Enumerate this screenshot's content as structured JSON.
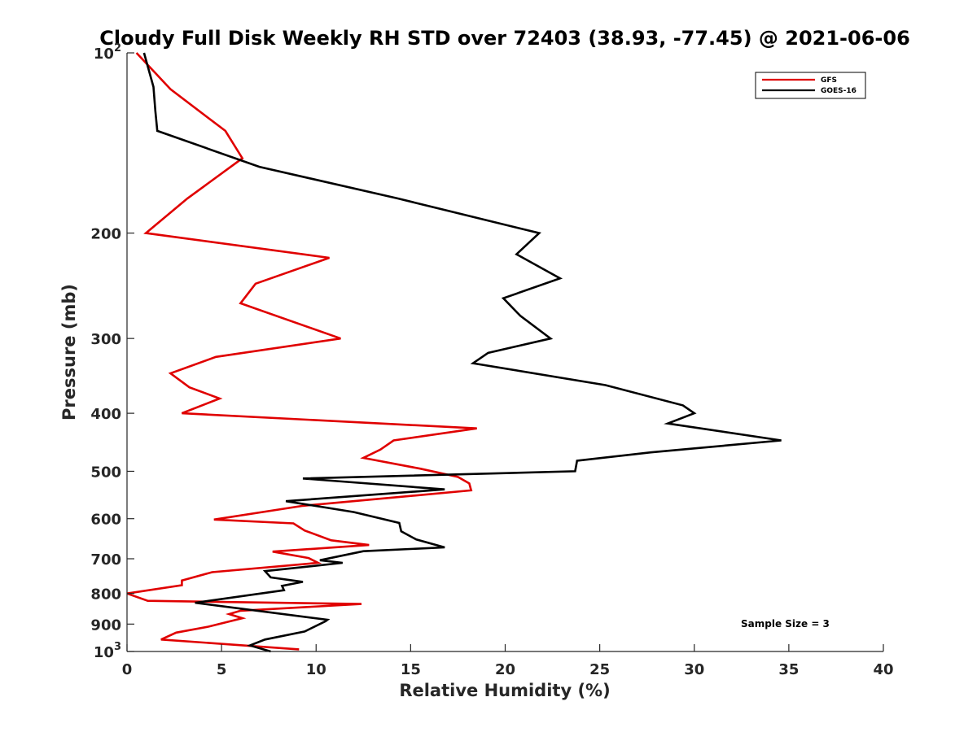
{
  "chart_data": {
    "type": "line",
    "title": "Cloudy Full Disk Weekly RH STD over 72403 (38.93, -77.45) @ 2021-06-06",
    "xlabel": "Relative Humidity (%)",
    "ylabel": "Pressure (mb)",
    "xlim": [
      0,
      40
    ],
    "ylim": [
      100,
      1000
    ],
    "y_scale": "log",
    "y_reversed": true,
    "grid": false,
    "legend_position": "top-right",
    "x_ticks": [
      "0",
      "5",
      "10",
      "15",
      "20",
      "25",
      "30",
      "35",
      "40"
    ],
    "y_ticks": [
      {
        "value": 100,
        "label": "10",
        "sup": "2"
      },
      {
        "value": 200,
        "label": "200",
        "sup": ""
      },
      {
        "value": 300,
        "label": "300",
        "sup": ""
      },
      {
        "value": 400,
        "label": "400",
        "sup": ""
      },
      {
        "value": 500,
        "label": "500",
        "sup": ""
      },
      {
        "value": 600,
        "label": "600",
        "sup": ""
      },
      {
        "value": 700,
        "label": "700",
        "sup": ""
      },
      {
        "value": 800,
        "label": "800",
        "sup": ""
      },
      {
        "value": 900,
        "label": "900",
        "sup": ""
      },
      {
        "value": 1000,
        "label": "10",
        "sup": "3"
      }
    ],
    "annotation": "Sample Size = 3",
    "series": [
      {
        "name": "GFS",
        "color": "#e00000",
        "points": [
          [
            0.5,
            100
          ],
          [
            2.3,
            115
          ],
          [
            5.2,
            135
          ],
          [
            6.1,
            150
          ],
          [
            3.2,
            175
          ],
          [
            1.0,
            200
          ],
          [
            10.7,
            220
          ],
          [
            6.8,
            243
          ],
          [
            6.0,
            262
          ],
          [
            11.3,
            300
          ],
          [
            4.7,
            322
          ],
          [
            2.3,
            343
          ],
          [
            3.3,
            362
          ],
          [
            4.9,
            378
          ],
          [
            2.9,
            400
          ],
          [
            18.5,
            424
          ],
          [
            14.1,
            444
          ],
          [
            13.4,
            460
          ],
          [
            12.5,
            475
          ],
          [
            15.5,
            495
          ],
          [
            17.5,
            511
          ],
          [
            18.1,
            524
          ],
          [
            18.2,
            538
          ],
          [
            9.3,
            571
          ],
          [
            4.6,
            602
          ],
          [
            8.8,
            611
          ],
          [
            9.4,
            628
          ],
          [
            10.8,
            652
          ],
          [
            12.8,
            664
          ],
          [
            7.7,
            681
          ],
          [
            9.6,
            698
          ],
          [
            10.1,
            711
          ],
          [
            4.5,
            737
          ],
          [
            2.9,
            761
          ],
          [
            2.9,
            775
          ],
          [
            0.0,
            800
          ],
          [
            1.1,
            823
          ],
          [
            12.4,
            833
          ],
          [
            6.0,
            855
          ],
          [
            5.4,
            866
          ],
          [
            6.1,
            880
          ],
          [
            4.3,
            909
          ],
          [
            2.6,
            930
          ],
          [
            1.8,
            955
          ],
          [
            9.1,
            992
          ]
        ]
      },
      {
        "name": "GOES-16",
        "color": "#000000",
        "points": [
          [
            0.9,
            100
          ],
          [
            1.4,
            114
          ],
          [
            1.5,
            125
          ],
          [
            1.6,
            135
          ],
          [
            7.0,
            155
          ],
          [
            14.3,
            175
          ],
          [
            21.8,
            200
          ],
          [
            20.6,
            217
          ],
          [
            22.9,
            238
          ],
          [
            19.9,
            257
          ],
          [
            20.8,
            275
          ],
          [
            22.4,
            300
          ],
          [
            19.1,
            317
          ],
          [
            18.3,
            330
          ],
          [
            25.3,
            359
          ],
          [
            29.4,
            388
          ],
          [
            30.0,
            400
          ],
          [
            28.6,
            416
          ],
          [
            34.6,
            444
          ],
          [
            27.7,
            465
          ],
          [
            23.8,
            480
          ],
          [
            23.7,
            500
          ],
          [
            9.3,
            514
          ],
          [
            16.8,
            536
          ],
          [
            8.4,
            561
          ],
          [
            12.0,
            585
          ],
          [
            14.4,
            610
          ],
          [
            14.5,
            630
          ],
          [
            15.3,
            650
          ],
          [
            16.8,
            670
          ],
          [
            12.5,
            680
          ],
          [
            10.2,
            704
          ],
          [
            11.4,
            711
          ],
          [
            7.3,
            734
          ],
          [
            7.6,
            752
          ],
          [
            9.3,
            765
          ],
          [
            8.2,
            777
          ],
          [
            8.3,
            790
          ],
          [
            3.6,
            829
          ],
          [
            10.6,
            885
          ],
          [
            10.5,
            890
          ],
          [
            9.4,
            926
          ],
          [
            7.3,
            955
          ],
          [
            6.5,
            977
          ],
          [
            7.6,
            1000
          ]
        ]
      }
    ]
  }
}
